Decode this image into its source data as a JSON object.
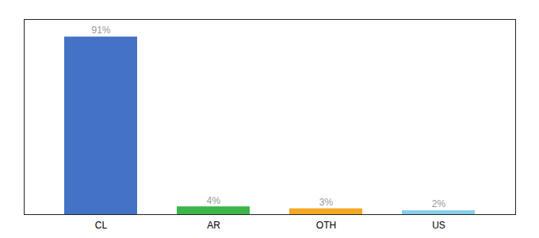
{
  "chart_data": {
    "type": "bar",
    "categories": [
      "CL",
      "AR",
      "OTH",
      "US"
    ],
    "values": [
      91,
      4,
      3,
      2
    ],
    "value_labels": [
      "91%",
      "4%",
      "3%",
      "2%"
    ],
    "colors": [
      "#4472c4",
      "#3cb54a",
      "#f5a623",
      "#87ceeb"
    ],
    "ylim": [
      0,
      100
    ],
    "data_labels": true,
    "tick_labels": "x",
    "grid": false
  }
}
